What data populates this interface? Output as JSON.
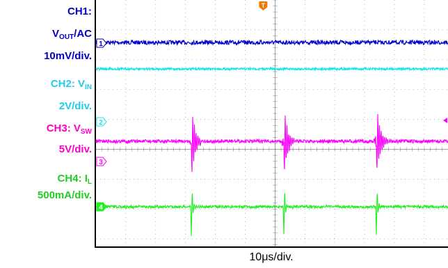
{
  "chart_data": {
    "type": "line",
    "title": "",
    "xlabel": "10μs/div.",
    "time_per_div_us": 10,
    "grid": true,
    "trigger_marker": "T",
    "channels": [
      {
        "id": "1",
        "name_prefix": "V",
        "name_sub": "OUT",
        "name_suffix": "/AC",
        "label_head": "CH1:",
        "scale": "10mV/div.",
        "color": "#0000cc",
        "label_color": "#0000cc",
        "coupling": "AC"
      },
      {
        "id": "",
        "name_prefix": "CH2: V",
        "name_sub": "IN",
        "scale": "2V/div.",
        "color": "#19e3f0",
        "label_color": "#22ccee"
      },
      {
        "id": "2",
        "name_prefix": "CH3: V",
        "name_sub": "SW",
        "scale": "5V/div.",
        "color": "#ff00ff",
        "label_color": "#ff00cc"
      },
      {
        "id": "4",
        "name_prefix": "CH4: I",
        "name_sub": "L",
        "scale": "500mA/div.",
        "color": "#22ee22",
        "label_color": "#22cc22"
      }
    ],
    "extra_ground_marker": "3",
    "switching_events_x_div": [
      3.2,
      6.3,
      9.4
    ],
    "x_range_div": [
      0,
      11.6
    ]
  }
}
